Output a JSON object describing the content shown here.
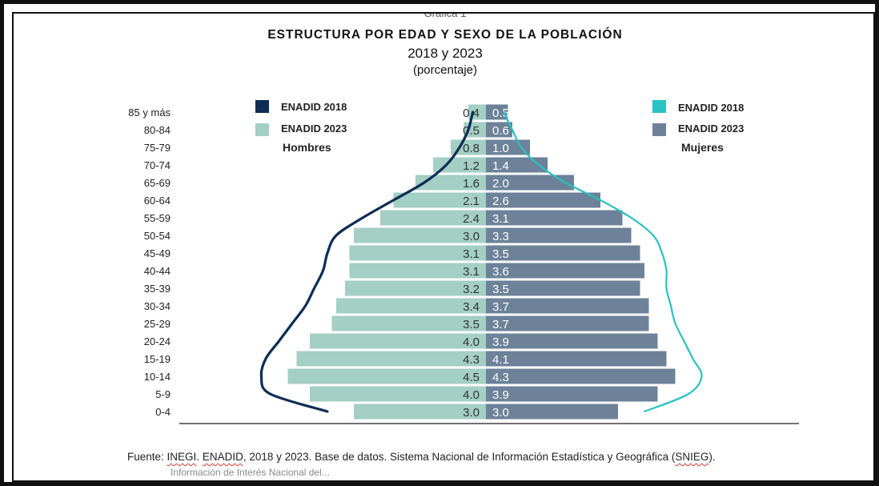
{
  "header": {
    "top_cut": "Gráfica 1",
    "title": "ESTRUCTURA POR EDAD Y SEXO DE LA POBLACIÓN",
    "subtitle": "2018 y 2023",
    "unit": "(porcentaje)"
  },
  "footer": {
    "source_prefix": "Fuente: ",
    "source_inegi": "INEGI",
    "source_sep1": ". ",
    "source_enadid": "ENADID",
    "source_mid": ", 2018 y 2023. Base de datos. Sistema Nacional de Información Estadística y Geográfica (",
    "source_snieg": "SNIEG",
    "source_end": ").",
    "source_cut": "Información de Interés Nacional del..."
  },
  "chart_data": {
    "type": "bar",
    "title": "ESTRUCTURA POR EDAD Y SEXO DE LA POBLACIÓN",
    "subtitle": "2018 y 2023",
    "unit": "(porcentaje)",
    "categories": [
      "85 y más",
      "80-84",
      "75-79",
      "70-74",
      "65-69",
      "60-64",
      "55-59",
      "50-54",
      "45-49",
      "40-44",
      "35-39",
      "30-34",
      "25-29",
      "20-24",
      "15-19",
      "10-14",
      "5-9",
      "0-4"
    ],
    "side_labels": {
      "left": "Hombres",
      "right": "Mujeres"
    },
    "legend": {
      "left": [
        {
          "name": "ENADID 2018",
          "color": "#0d2d54"
        },
        {
          "name": "ENADID 2023",
          "color": "#a3cfc4"
        }
      ],
      "right": [
        {
          "name": "ENADID 2018",
          "color": "#27c2c4"
        },
        {
          "name": "ENADID 2023",
          "color": "#6d8299"
        }
      ]
    },
    "series": [
      {
        "name": "ENADID 2023",
        "side": "Hombres",
        "render": "bar",
        "color": "#a3cfc4",
        "values": [
          0.4,
          0.5,
          0.8,
          1.2,
          1.6,
          2.1,
          2.4,
          3.0,
          3.1,
          3.1,
          3.2,
          3.4,
          3.5,
          4.0,
          4.3,
          4.5,
          4.0,
          3.0
        ]
      },
      {
        "name": "ENADID 2023",
        "side": "Mujeres",
        "render": "bar",
        "color": "#6d8299",
        "values": [
          0.5,
          0.6,
          1.0,
          1.4,
          2.0,
          2.6,
          3.1,
          3.3,
          3.5,
          3.6,
          3.5,
          3.7,
          3.7,
          3.9,
          4.1,
          4.3,
          3.9,
          3.0
        ]
      },
      {
        "name": "ENADID 2018",
        "side": "Hombres",
        "render": "line",
        "color": "#0d2d54",
        "values": [
          0.3,
          0.4,
          0.6,
          0.9,
          1.4,
          2.1,
          2.8,
          3.4,
          3.6,
          3.7,
          3.9,
          4.1,
          4.4,
          4.7,
          5.0,
          5.1,
          4.9,
          3.6
        ]
      },
      {
        "name": "ENADID 2018",
        "side": "Mujeres",
        "render": "line",
        "color": "#27c2c4",
        "values": [
          0.4,
          0.6,
          0.8,
          1.2,
          1.8,
          2.6,
          3.3,
          3.8,
          4.0,
          4.1,
          4.1,
          4.2,
          4.3,
          4.5,
          4.7,
          4.9,
          4.6,
          3.6
        ]
      }
    ],
    "grid": false,
    "legend_position": "top-left and top-right"
  }
}
